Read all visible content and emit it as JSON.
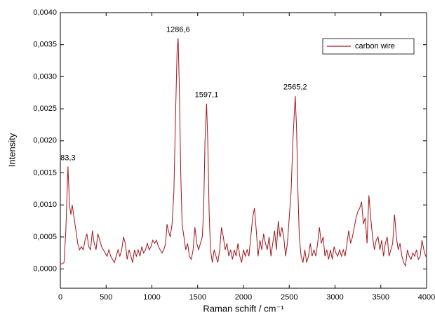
{
  "chart_data": {
    "type": "line",
    "x_label": "Raman schift / cm⁻¹",
    "y_label": "Intensity",
    "xlim": [
      0,
      4000
    ],
    "xticks": [
      0,
      500,
      1000,
      1500,
      2000,
      2500,
      3000,
      3500,
      4000
    ],
    "ylim": [
      -0.0003,
      0.004
    ],
    "yticks": [
      {
        "value": 0,
        "label": "0,0000"
      },
      {
        "value": 0.0005,
        "label": "0,0005"
      },
      {
        "value": 0.001,
        "label": "0,0010"
      },
      {
        "value": 0.0015,
        "label": "0,0015"
      },
      {
        "value": 0.002,
        "label": "0,0020"
      },
      {
        "value": 0.0025,
        "label": "0,0025"
      },
      {
        "value": 0.003,
        "label": "0,0030"
      },
      {
        "value": 0.0035,
        "label": "0,0035"
      },
      {
        "value": 0.004,
        "label": "0,0040"
      }
    ],
    "legend_position": "upper right",
    "annotations": [
      {
        "x": 83.3,
        "y": 0.0016,
        "label": "83,3"
      },
      {
        "x": 1286.6,
        "y": 0.0036,
        "label": "1286,6"
      },
      {
        "x": 1597.1,
        "y": 0.00258,
        "label": "1597,1"
      },
      {
        "x": 2565.2,
        "y": 0.0027,
        "label": "2565,2"
      }
    ],
    "x": [
      0,
      20,
      40,
      60,
      83.3,
      100,
      115,
      130,
      150,
      170,
      190,
      210,
      230,
      250,
      270,
      290,
      310,
      330,
      350,
      370,
      390,
      410,
      430,
      450,
      470,
      490,
      510,
      530,
      550,
      570,
      590,
      610,
      630,
      650,
      670,
      690,
      710,
      730,
      750,
      770,
      790,
      810,
      830,
      850,
      870,
      890,
      910,
      930,
      950,
      970,
      990,
      1010,
      1030,
      1050,
      1070,
      1090,
      1110,
      1130,
      1150,
      1165,
      1180,
      1200,
      1220,
      1240,
      1260,
      1275,
      1286.6,
      1300,
      1315,
      1330,
      1350,
      1370,
      1390,
      1410,
      1430,
      1450,
      1470,
      1490,
      1510,
      1530,
      1550,
      1565,
      1580,
      1597.1,
      1610,
      1625,
      1640,
      1660,
      1680,
      1700,
      1720,
      1740,
      1760,
      1780,
      1800,
      1820,
      1840,
      1860,
      1880,
      1900,
      1920,
      1940,
      1960,
      1980,
      2000,
      2020,
      2040,
      2060,
      2080,
      2100,
      2120,
      2140,
      2160,
      2180,
      2200,
      2220,
      2240,
      2260,
      2280,
      2300,
      2320,
      2340,
      2360,
      2380,
      2400,
      2420,
      2440,
      2460,
      2480,
      2500,
      2520,
      2540,
      2565.2,
      2580,
      2595,
      2610,
      2630,
      2650,
      2670,
      2690,
      2710,
      2730,
      2750,
      2770,
      2790,
      2810,
      2830,
      2850,
      2870,
      2890,
      2910,
      2930,
      2950,
      2970,
      2990,
      3010,
      3030,
      3050,
      3070,
      3090,
      3110,
      3130,
      3150,
      3170,
      3190,
      3210,
      3230,
      3250,
      3270,
      3290,
      3310,
      3330,
      3350,
      3370,
      3390,
      3410,
      3430,
      3450,
      3470,
      3490,
      3510,
      3530,
      3550,
      3570,
      3590,
      3610,
      3630,
      3650,
      3670,
      3690,
      3710,
      3730,
      3750,
      3770,
      3790,
      3810,
      3830,
      3850,
      3870,
      3890,
      3910,
      3930,
      3950,
      3970,
      3990,
      4000
    ],
    "series": [
      {
        "name": "carbon wire",
        "color": "#a3141b",
        "values": [
          8e-05,
          8e-05,
          0.0001,
          0.0006,
          0.0016,
          0.001,
          0.00085,
          0.001,
          0.0008,
          0.0006,
          0.0004,
          0.0003,
          0.00035,
          0.0003,
          0.00045,
          0.00055,
          0.00035,
          0.0003,
          0.0006,
          0.0004,
          0.0003,
          0.00055,
          0.00045,
          0.00035,
          0.0003,
          0.00025,
          0.0002,
          0.0003,
          0.0002,
          0.00015,
          0.0001,
          0.0002,
          0.0003,
          0.0002,
          0.0003,
          0.0005,
          0.0004,
          0.00015,
          0.0003,
          0.0002,
          0.0001,
          0.0003,
          0.0002,
          0.0003,
          0.0002,
          0.00035,
          0.00025,
          0.0003,
          0.0004,
          0.0003,
          0.00035,
          0.00045,
          0.0004,
          0.00045,
          0.00035,
          0.0003,
          0.00025,
          0.0003,
          0.0004,
          0.0007,
          0.0006,
          0.0005,
          0.0007,
          0.0012,
          0.0025,
          0.0034,
          0.0036,
          0.0028,
          0.0015,
          0.0007,
          0.0005,
          0.0003,
          0.0004,
          0.0002,
          0.00015,
          0.0003,
          0.00065,
          0.0004,
          0.0003,
          0.0004,
          0.0005,
          0.0009,
          0.002,
          0.00258,
          0.002,
          0.0009,
          0.0003,
          0.0001,
          0.0003,
          0.0002,
          0.0001,
          0.0003,
          0.00065,
          0.0005,
          0.0003,
          0.0004,
          0.0002,
          0.0003,
          0.00015,
          0.0003,
          0.0002,
          0.0004,
          0.0002,
          0.0001,
          0.0003,
          0.0002,
          0.0003,
          0.0002,
          0.0005,
          0.0008,
          0.00095,
          0.0006,
          0.0002,
          0.00045,
          0.0003,
          0.00055,
          0.0004,
          0.0003,
          0.0005,
          0.0002,
          0.0004,
          0.0006,
          0.0003,
          0.00075,
          0.0005,
          0.00065,
          0.0005,
          0.0002,
          0.0004,
          0.0008,
          0.0012,
          0.002,
          0.0027,
          0.0022,
          0.0012,
          0.0005,
          0.0002,
          0.0001,
          0.0003,
          0.0001,
          0.0002,
          0.0004,
          0.0002,
          0.0003,
          0.0002,
          0.0004,
          0.00065,
          0.0004,
          0.0005,
          0.0002,
          0.0003,
          0.00015,
          0.0003,
          0.00015,
          0.00035,
          0.00025,
          0.0002,
          0.0003,
          0.0002,
          0.0003,
          0.0002,
          0.0004,
          0.0006,
          0.0004,
          0.0005,
          0.00065,
          0.0008,
          0.0009,
          0.00095,
          0.00105,
          0.0007,
          0.0008,
          0.0004,
          0.00115,
          0.0008,
          0.0005,
          0.0003,
          0.00045,
          0.0005,
          0.0003,
          0.00045,
          0.0002,
          0.0004,
          0.0005,
          0.0002,
          0.0003,
          0.0004,
          0.00085,
          0.0005,
          0.0003,
          0.0004,
          0.0002,
          0.0001,
          5e-05,
          0.0003,
          0.0002,
          0.00015,
          0.00025,
          0.0002,
          0.0003,
          0.00015,
          0.0002,
          0.00045,
          0.0003,
          0.0002,
          0.0002
        ]
      }
    ]
  }
}
